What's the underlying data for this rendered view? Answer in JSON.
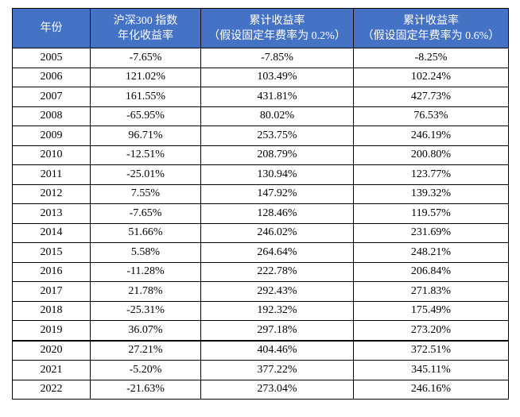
{
  "colors": {
    "header_bg": "#4472c4",
    "header_text": "#ffffff",
    "border": "#000000",
    "body_text": "#000000"
  },
  "header": [
    {
      "lines": [
        "年份"
      ]
    },
    {
      "lines": [
        "沪深300 指数",
        "年化收益率"
      ]
    },
    {
      "lines": [
        "累计收益率",
        "（假设固定年费率为 0.2%）"
      ]
    },
    {
      "lines": [
        "累计收益率",
        "（假设固定年费率为 0.6%）"
      ]
    }
  ],
  "rows": [
    [
      "2005",
      "-7.65%",
      "-7.85%",
      "-8.25%"
    ],
    [
      "2006",
      "121.02%",
      "103.49%",
      "102.24%"
    ],
    [
      "2007",
      "161.55%",
      "431.81%",
      "427.73%"
    ],
    [
      "2008",
      "-65.95%",
      "80.02%",
      "76.53%"
    ],
    [
      "2009",
      "96.71%",
      "253.75%",
      "246.19%"
    ],
    [
      "2010",
      "-12.51%",
      "208.79%",
      "200.80%"
    ],
    [
      "2011",
      "-25.01%",
      "130.94%",
      "123.77%"
    ],
    [
      "2012",
      "7.55%",
      "147.92%",
      "139.32%"
    ],
    [
      "2013",
      "-7.65%",
      "128.46%",
      "119.57%"
    ],
    [
      "2014",
      "51.66%",
      "246.02%",
      "231.69%"
    ],
    [
      "2015",
      "5.58%",
      "264.64%",
      "248.21%"
    ],
    [
      "2016",
      "-11.28%",
      "222.78%",
      "206.84%"
    ],
    [
      "2017",
      "21.78%",
      "292.43%",
      "271.83%"
    ],
    [
      "2018",
      "-25.31%",
      "192.32%",
      "175.49%"
    ],
    [
      "2019",
      "36.07%",
      "297.18%",
      "273.20%"
    ],
    [
      "2020",
      "27.21%",
      "404.46%",
      "372.51%"
    ],
    [
      "2021",
      "-5.20%",
      "377.22%",
      "345.11%"
    ],
    [
      "2022",
      "-21.63%",
      "273.04%",
      "246.16%"
    ]
  ]
}
